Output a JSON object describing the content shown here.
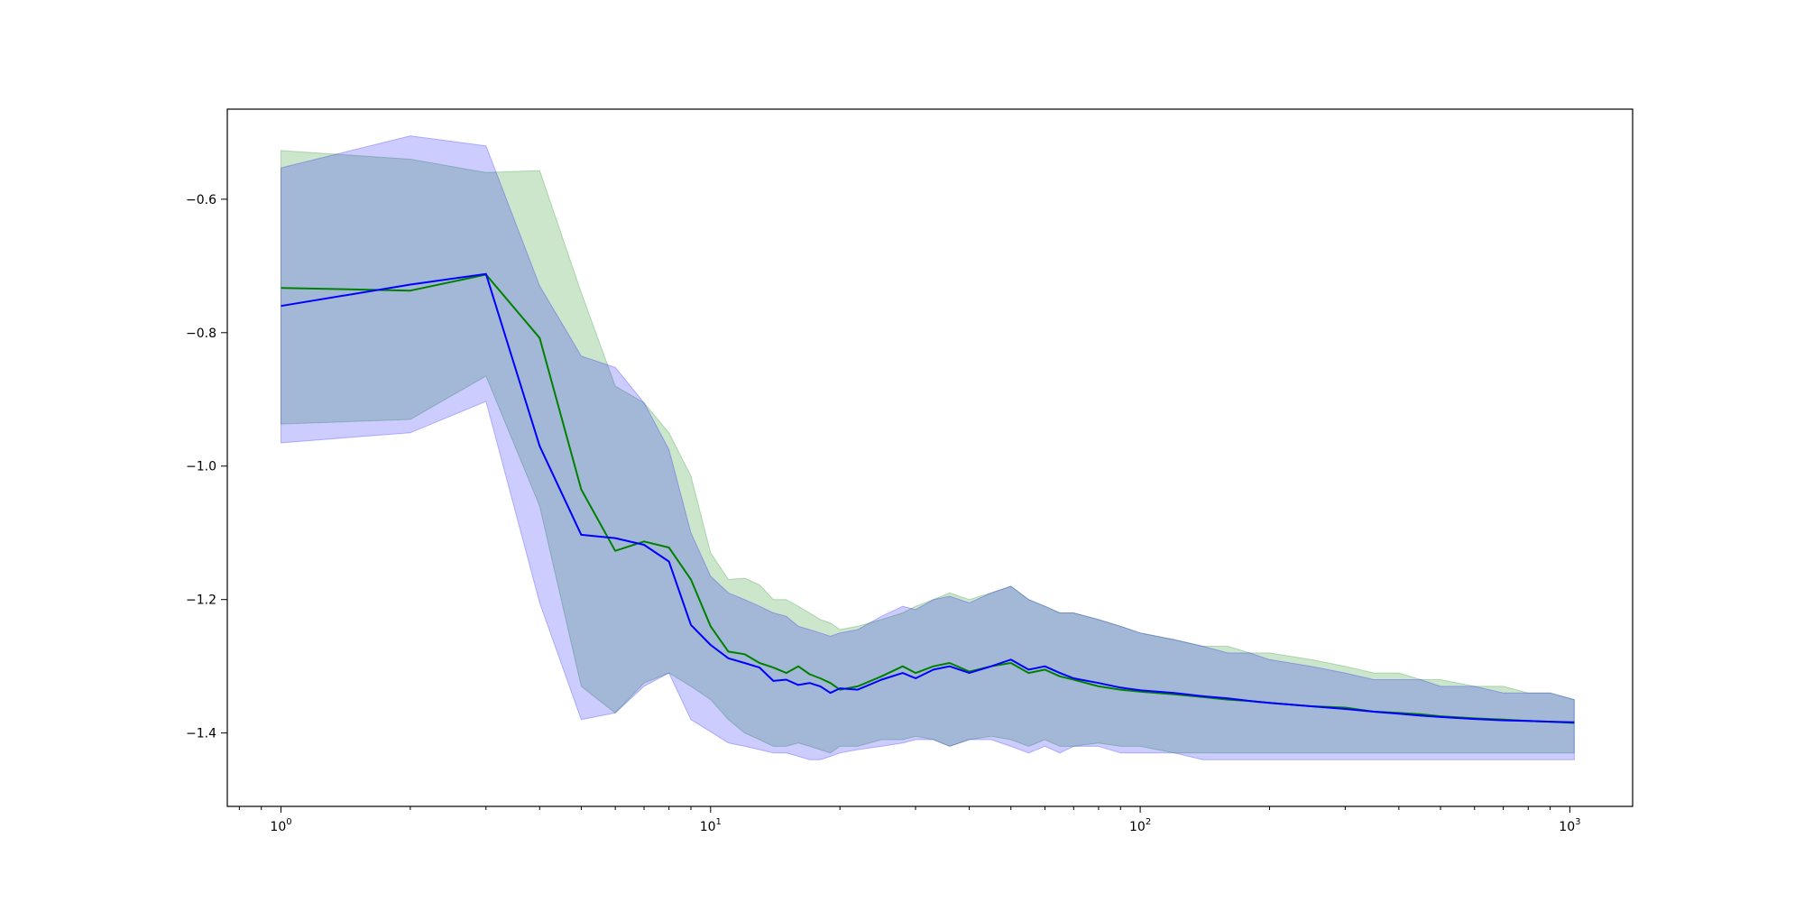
{
  "chart_data": {
    "type": "line",
    "title": "",
    "xlabel": "",
    "ylabel": "",
    "x_scale": "log",
    "xlim": [
      0.75,
      1400
    ],
    "ylim": [
      -1.51,
      -0.465
    ],
    "grid": false,
    "legend": "none",
    "x_ticks": [
      {
        "value": 1,
        "base": "10",
        "exp": "0"
      },
      {
        "value": 10,
        "base": "10",
        "exp": "1"
      },
      {
        "value": 100,
        "base": "10",
        "exp": "2"
      },
      {
        "value": 1000,
        "base": "10",
        "exp": "3"
      }
    ],
    "y_ticks": [
      {
        "value": -0.6,
        "label": "−0.6"
      },
      {
        "value": -0.8,
        "label": "−0.8"
      },
      {
        "value": -1.0,
        "label": "−1.0"
      },
      {
        "value": -1.2,
        "label": "−1.2"
      },
      {
        "value": -1.4,
        "label": "−1.4"
      }
    ],
    "series": [
      {
        "color": "#008000",
        "band_color": "#008000",
        "band_opacity": 0.2,
        "x": [
          1,
          2,
          3,
          4,
          5,
          6,
          7,
          8,
          9,
          10,
          11,
          12,
          13,
          14,
          15,
          16,
          17,
          18,
          19,
          20,
          22,
          25,
          28,
          30,
          33,
          36,
          40,
          45,
          50,
          55,
          60,
          65,
          70,
          80,
          90,
          100,
          120,
          140,
          160,
          180,
          200,
          250,
          300,
          350,
          400,
          450,
          500,
          600,
          700,
          800,
          900,
          1024
        ],
        "y": [
          -0.733,
          -0.737,
          -0.713,
          -0.808,
          -1.035,
          -1.127,
          -1.113,
          -1.122,
          -1.17,
          -1.24,
          -1.278,
          -1.282,
          -1.295,
          -1.302,
          -1.31,
          -1.3,
          -1.312,
          -1.318,
          -1.325,
          -1.335,
          -1.33,
          -1.315,
          -1.3,
          -1.31,
          -1.3,
          -1.295,
          -1.308,
          -1.3,
          -1.295,
          -1.31,
          -1.305,
          -1.315,
          -1.32,
          -1.33,
          -1.335,
          -1.338,
          -1.342,
          -1.346,
          -1.35,
          -1.352,
          -1.355,
          -1.36,
          -1.362,
          -1.368,
          -1.37,
          -1.372,
          -1.375,
          -1.378,
          -1.38,
          -1.382,
          -1.383,
          -1.385
        ],
        "upper": [
          -0.527,
          -0.54,
          -0.56,
          -0.557,
          -0.74,
          -0.88,
          -0.905,
          -0.95,
          -1.015,
          -1.13,
          -1.17,
          -1.168,
          -1.178,
          -1.2,
          -1.2,
          -1.21,
          -1.22,
          -1.23,
          -1.235,
          -1.245,
          -1.24,
          -1.23,
          -1.22,
          -1.21,
          -1.2,
          -1.19,
          -1.2,
          -1.19,
          -1.18,
          -1.2,
          -1.21,
          -1.22,
          -1.22,
          -1.23,
          -1.24,
          -1.25,
          -1.26,
          -1.27,
          -1.27,
          -1.28,
          -1.28,
          -1.29,
          -1.3,
          -1.31,
          -1.31,
          -1.32,
          -1.32,
          -1.33,
          -1.33,
          -1.34,
          -1.34,
          -1.35
        ],
        "lower": [
          -0.937,
          -0.93,
          -0.865,
          -1.06,
          -1.33,
          -1.37,
          -1.325,
          -1.31,
          -1.33,
          -1.35,
          -1.38,
          -1.4,
          -1.41,
          -1.42,
          -1.42,
          -1.415,
          -1.42,
          -1.425,
          -1.43,
          -1.42,
          -1.42,
          -1.41,
          -1.41,
          -1.405,
          -1.41,
          -1.42,
          -1.41,
          -1.405,
          -1.41,
          -1.42,
          -1.41,
          -1.42,
          -1.42,
          -1.415,
          -1.42,
          -1.42,
          -1.43,
          -1.43,
          -1.43,
          -1.43,
          -1.43,
          -1.43,
          -1.43,
          -1.43,
          -1.43,
          -1.43,
          -1.43,
          -1.43,
          -1.43,
          -1.43,
          -1.43,
          -1.43
        ]
      },
      {
        "color": "#0000ff",
        "band_color": "#0000ff",
        "band_opacity": 0.2,
        "x": [
          1,
          2,
          3,
          4,
          5,
          6,
          7,
          8,
          9,
          10,
          11,
          12,
          13,
          14,
          15,
          16,
          17,
          18,
          19,
          20,
          22,
          25,
          28,
          30,
          33,
          36,
          40,
          45,
          50,
          55,
          60,
          65,
          70,
          80,
          90,
          100,
          120,
          140,
          160,
          180,
          200,
          250,
          300,
          350,
          400,
          450,
          500,
          600,
          700,
          800,
          900,
          1024
        ],
        "y": [
          -0.76,
          -0.728,
          -0.712,
          -0.97,
          -1.103,
          -1.108,
          -1.118,
          -1.143,
          -1.238,
          -1.268,
          -1.288,
          -1.295,
          -1.302,
          -1.322,
          -1.32,
          -1.328,
          -1.325,
          -1.33,
          -1.34,
          -1.333,
          -1.335,
          -1.32,
          -1.31,
          -1.318,
          -1.305,
          -1.3,
          -1.31,
          -1.3,
          -1.29,
          -1.305,
          -1.3,
          -1.31,
          -1.318,
          -1.325,
          -1.332,
          -1.336,
          -1.34,
          -1.345,
          -1.348,
          -1.352,
          -1.355,
          -1.36,
          -1.364,
          -1.368,
          -1.371,
          -1.374,
          -1.376,
          -1.379,
          -1.381,
          -1.382,
          -1.383,
          -1.384
        ],
        "upper": [
          -0.553,
          -0.505,
          -0.52,
          -0.73,
          -0.835,
          -0.852,
          -0.905,
          -0.975,
          -1.1,
          -1.165,
          -1.19,
          -1.2,
          -1.21,
          -1.22,
          -1.225,
          -1.24,
          -1.245,
          -1.25,
          -1.255,
          -1.25,
          -1.245,
          -1.225,
          -1.21,
          -1.215,
          -1.2,
          -1.195,
          -1.205,
          -1.19,
          -1.18,
          -1.2,
          -1.21,
          -1.22,
          -1.22,
          -1.23,
          -1.24,
          -1.25,
          -1.26,
          -1.27,
          -1.28,
          -1.28,
          -1.29,
          -1.3,
          -1.31,
          -1.32,
          -1.32,
          -1.32,
          -1.33,
          -1.33,
          -1.34,
          -1.34,
          -1.34,
          -1.35
        ],
        "lower": [
          -0.965,
          -0.95,
          -0.903,
          -1.205,
          -1.38,
          -1.37,
          -1.33,
          -1.31,
          -1.38,
          -1.398,
          -1.415,
          -1.42,
          -1.425,
          -1.43,
          -1.43,
          -1.435,
          -1.44,
          -1.44,
          -1.435,
          -1.43,
          -1.425,
          -1.42,
          -1.415,
          -1.41,
          -1.41,
          -1.42,
          -1.41,
          -1.41,
          -1.42,
          -1.43,
          -1.42,
          -1.43,
          -1.42,
          -1.42,
          -1.43,
          -1.43,
          -1.43,
          -1.44,
          -1.44,
          -1.44,
          -1.44,
          -1.44,
          -1.44,
          -1.44,
          -1.44,
          -1.44,
          -1.44,
          -1.44,
          -1.44,
          -1.44,
          -1.44,
          -1.44
        ]
      }
    ]
  }
}
